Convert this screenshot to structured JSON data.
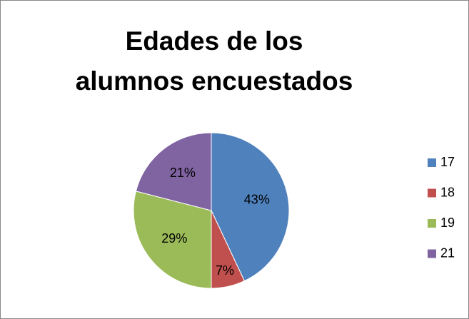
{
  "chart_data": {
    "type": "pie",
    "title": "Edades de los alumnos encuestados",
    "categories": [
      "17",
      "18",
      "19",
      "21"
    ],
    "values": [
      43,
      7,
      29,
      21
    ],
    "value_labels": [
      "43%",
      "7%",
      "29%",
      "21%"
    ],
    "colors": [
      "#4f81bd",
      "#c0504d",
      "#9bbb59",
      "#8064a2"
    ],
    "legend": "right"
  }
}
